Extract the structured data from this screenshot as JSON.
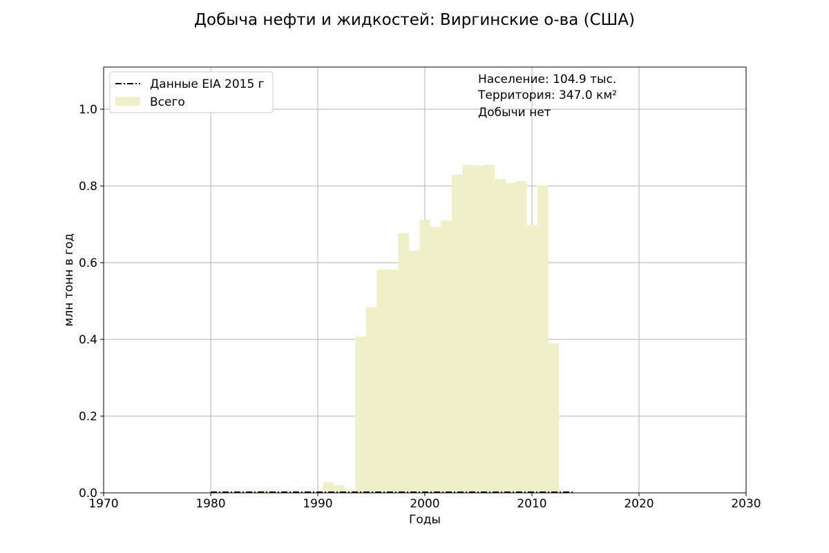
{
  "chart_data": {
    "type": "bar",
    "title": "Добыча нефти и жидкостей: Виргинские о-ва (США)",
    "xlabel": "Годы",
    "ylabel": "млн тонн в год",
    "xlim": [
      1970,
      2030
    ],
    "ylim": [
      0,
      1.11
    ],
    "xticks": [
      1970,
      1980,
      1990,
      2000,
      2010,
      2020,
      2030
    ],
    "xtick_labels": [
      "1970",
      "1980",
      "1990",
      "2000",
      "2010",
      "2020",
      "2030"
    ],
    "yticks": [
      0,
      0.2,
      0.4,
      0.6,
      0.8,
      1.0
    ],
    "ytick_labels": [
      "0.0",
      "0.2",
      "0.4",
      "0.6",
      "0.8",
      "1.0"
    ],
    "grid": true,
    "legend_position": "top-left",
    "series": [
      {
        "name": "Всего",
        "kind": "bar",
        "color": "#f0f0c8",
        "x": [
          1980,
          1981,
          1982,
          1983,
          1984,
          1985,
          1986,
          1987,
          1988,
          1989,
          1990,
          1991,
          1992,
          1993,
          1994,
          1995,
          1996,
          1997,
          1998,
          1999,
          2000,
          2001,
          2002,
          2003,
          2004,
          2005,
          2006,
          2007,
          2008,
          2009,
          2010,
          2011,
          2012
        ],
        "values": [
          0.001,
          0.001,
          0.001,
          0.001,
          0.002,
          0.008,
          0.002,
          0.002,
          0.002,
          0.002,
          0.002,
          0.028,
          0.02,
          0.008,
          0.407,
          0.484,
          0.582,
          0.582,
          0.677,
          0.631,
          0.712,
          0.694,
          0.71,
          0.829,
          0.855,
          0.853,
          0.855,
          0.818,
          0.808,
          0.813,
          0.698,
          0.801,
          0.39
        ]
      },
      {
        "name": "Данные EIA 2015 г",
        "kind": "line",
        "style": "dashdot",
        "color": "#000000",
        "x": [
          1980,
          2014
        ],
        "values": [
          0,
          0
        ]
      }
    ],
    "annotations": [
      "Население: 104.9 тыс.",
      "Территория: 347.0 км²",
      "Добычи нет"
    ]
  }
}
